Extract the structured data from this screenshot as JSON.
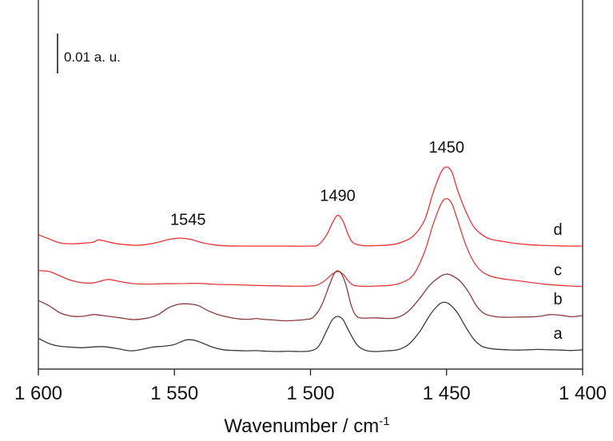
{
  "chart_data": {
    "type": "line",
    "xlabel": "Wavenumber / cm",
    "xlabel_superscript": "-1",
    "xlim": [
      1600,
      1400
    ],
    "x_reversed": true,
    "x_ticks": [
      1600,
      1550,
      1500,
      1450,
      1400
    ],
    "x_tick_labels": [
      "1 600",
      "1 550",
      "1 500",
      "1 450",
      "1 400"
    ],
    "y_visible": false,
    "grid": false,
    "scale_bar_label": "0.01 a. u.",
    "annotations": [
      {
        "text": "1545",
        "x": 1545
      },
      {
        "text": "1490",
        "x": 1490
      },
      {
        "text": "1450",
        "x": 1450
      }
    ],
    "colors": {
      "a": "#3a3a3a",
      "b": "#8a3b3b",
      "c": "#e03a3a",
      "d": "#f03030"
    },
    "series": [
      {
        "name": "d",
        "offset": 0.06,
        "points": [
          [
            1600,
            0.0065
          ],
          [
            1596,
            0.004
          ],
          [
            1592,
            0.0018
          ],
          [
            1588,
            0.0013
          ],
          [
            1584,
            0.0016
          ],
          [
            1580,
            0.0022
          ],
          [
            1578,
            0.0035
          ],
          [
            1576,
            0.003
          ],
          [
            1572,
            0.0016
          ],
          [
            1568,
            0.0008
          ],
          [
            1564,
            0.0004
          ],
          [
            1560,
            0.001
          ],
          [
            1556,
            0.0022
          ],
          [
            1552,
            0.0038
          ],
          [
            1548,
            0.0045
          ],
          [
            1544,
            0.0038
          ],
          [
            1540,
            0.002
          ],
          [
            1535,
            0.0006
          ],
          [
            1530,
            0.0001
          ],
          [
            1520,
            0.0
          ],
          [
            1510,
            0.0
          ],
          [
            1500,
            0.0
          ],
          [
            1497,
            0.0008
          ],
          [
            1494,
            0.0065
          ],
          [
            1492,
            0.013
          ],
          [
            1490,
            0.0175
          ],
          [
            1488,
            0.014
          ],
          [
            1486,
            0.006
          ],
          [
            1484,
            0.0015
          ],
          [
            1480,
            0.0002
          ],
          [
            1475,
            0.0003
          ],
          [
            1470,
            0.0008
          ],
          [
            1466,
            0.0025
          ],
          [
            1462,
            0.006
          ],
          [
            1458,
            0.015
          ],
          [
            1455,
            0.03
          ],
          [
            1452,
            0.042
          ],
          [
            1450,
            0.045
          ],
          [
            1448,
            0.042
          ],
          [
            1446,
            0.032
          ],
          [
            1443,
            0.02
          ],
          [
            1440,
            0.011
          ],
          [
            1437,
            0.0065
          ],
          [
            1434,
            0.004
          ],
          [
            1430,
            0.0028
          ],
          [
            1426,
            0.0018
          ],
          [
            1420,
            0.0008
          ],
          [
            1415,
            0.0004
          ],
          [
            1410,
            0.0002
          ],
          [
            1405,
            0.0
          ],
          [
            1400,
            0.0
          ]
        ]
      },
      {
        "name": "c",
        "offset": 0.037,
        "points": [
          [
            1600,
            0.009
          ],
          [
            1596,
            0.0085
          ],
          [
            1592,
            0.006
          ],
          [
            1588,
            0.0035
          ],
          [
            1584,
            0.0022
          ],
          [
            1580,
            0.002
          ],
          [
            1576,
            0.0035
          ],
          [
            1574,
            0.004
          ],
          [
            1570,
            0.0028
          ],
          [
            1566,
            0.0018
          ],
          [
            1562,
            0.0014
          ],
          [
            1558,
            0.0014
          ],
          [
            1554,
            0.0016
          ],
          [
            1550,
            0.0016
          ],
          [
            1546,
            0.0017
          ],
          [
            1542,
            0.0018
          ],
          [
            1538,
            0.0015
          ],
          [
            1534,
            0.0012
          ],
          [
            1528,
            0.001
          ],
          [
            1520,
            0.0006
          ],
          [
            1514,
            0.0004
          ],
          [
            1508,
            0.0002
          ],
          [
            1502,
            0.0002
          ],
          [
            1498,
            0.0006
          ],
          [
            1495,
            0.003
          ],
          [
            1492,
            0.007
          ],
          [
            1490,
            0.0085
          ],
          [
            1488,
            0.007
          ],
          [
            1486,
            0.003
          ],
          [
            1484,
            0.0006
          ],
          [
            1480,
            0.0001
          ],
          [
            1475,
            0.0003
          ],
          [
            1470,
            0.0008
          ],
          [
            1466,
            0.0025
          ],
          [
            1462,
            0.007
          ],
          [
            1458,
            0.02
          ],
          [
            1455,
            0.035
          ],
          [
            1452,
            0.047
          ],
          [
            1450,
            0.05
          ],
          [
            1448,
            0.047
          ],
          [
            1446,
            0.038
          ],
          [
            1443,
            0.024
          ],
          [
            1440,
            0.014
          ],
          [
            1437,
            0.0085
          ],
          [
            1434,
            0.006
          ],
          [
            1430,
            0.0045
          ],
          [
            1425,
            0.0035
          ],
          [
            1420,
            0.0025
          ],
          [
            1415,
            0.0015
          ],
          [
            1410,
            0.0008
          ],
          [
            1405,
            0.0003
          ],
          [
            1400,
            0.0
          ]
        ]
      },
      {
        "name": "b",
        "offset": 0.018,
        "points": [
          [
            1600,
            0.011
          ],
          [
            1596,
            0.008
          ],
          [
            1592,
            0.004
          ],
          [
            1588,
            0.0022
          ],
          [
            1584,
            0.002
          ],
          [
            1580,
            0.003
          ],
          [
            1578,
            0.0028
          ],
          [
            1575,
            0.0022
          ],
          [
            1570,
            0.0012
          ],
          [
            1565,
            0.0002
          ],
          [
            1560,
            0.001
          ],
          [
            1556,
            0.003
          ],
          [
            1552,
            0.007
          ],
          [
            1548,
            0.009
          ],
          [
            1544,
            0.009
          ],
          [
            1541,
            0.008
          ],
          [
            1538,
            0.0055
          ],
          [
            1534,
            0.003
          ],
          [
            1530,
            0.0015
          ],
          [
            1526,
            0.0005
          ],
          [
            1522,
            0.0004
          ],
          [
            1520,
            0.0008
          ],
          [
            1518,
            0.0004
          ],
          [
            1514,
            0.0
          ],
          [
            1510,
            -0.0005
          ],
          [
            1506,
            -0.0003
          ],
          [
            1502,
            0.0002
          ],
          [
            1499,
            0.0015
          ],
          [
            1496,
            0.008
          ],
          [
            1493,
            0.02
          ],
          [
            1491,
            0.027
          ],
          [
            1489,
            0.027
          ],
          [
            1487,
            0.02
          ],
          [
            1485,
            0.008
          ],
          [
            1483,
            0.002
          ],
          [
            1480,
            0.001
          ],
          [
            1476,
            0.0012
          ],
          [
            1472,
            0.0008
          ],
          [
            1468,
            0.0014
          ],
          [
            1464,
            0.005
          ],
          [
            1460,
            0.012
          ],
          [
            1456,
            0.02
          ],
          [
            1452,
            0.025
          ],
          [
            1450,
            0.026
          ],
          [
            1448,
            0.0252
          ],
          [
            1445,
            0.022
          ],
          [
            1442,
            0.016
          ],
          [
            1439,
            0.008
          ],
          [
            1436,
            0.0035
          ],
          [
            1432,
            0.0018
          ],
          [
            1428,
            0.0015
          ],
          [
            1424,
            0.0016
          ],
          [
            1420,
            0.0017
          ],
          [
            1416,
            0.002
          ],
          [
            1412,
            0.003
          ],
          [
            1408,
            0.0026
          ],
          [
            1404,
            0.0018
          ],
          [
            1400,
            0.0025
          ]
        ]
      },
      {
        "name": "a",
        "offset": 0.0,
        "points": [
          [
            1600,
            0.0075
          ],
          [
            1596,
            0.0045
          ],
          [
            1592,
            0.003
          ],
          [
            1588,
            0.0025
          ],
          [
            1584,
            0.0022
          ],
          [
            1580,
            0.0026
          ],
          [
            1577,
            0.0028
          ],
          [
            1574,
            0.0024
          ],
          [
            1570,
            0.0014
          ],
          [
            1566,
            0.0004
          ],
          [
            1562,
            0.0012
          ],
          [
            1558,
            0.0025
          ],
          [
            1554,
            0.003
          ],
          [
            1550,
            0.004
          ],
          [
            1546,
            0.0065
          ],
          [
            1543,
            0.0065
          ],
          [
            1540,
            0.005
          ],
          [
            1536,
            0.0025
          ],
          [
            1532,
            0.001
          ],
          [
            1528,
            0.0006
          ],
          [
            1524,
            0.0004
          ],
          [
            1520,
            0.0005
          ],
          [
            1516,
            0.0002
          ],
          [
            1512,
            0.0
          ],
          [
            1508,
            0.0002
          ],
          [
            1504,
            0.0
          ],
          [
            1500,
            0.0004
          ],
          [
            1497,
            0.003
          ],
          [
            1494,
            0.012
          ],
          [
            1492,
            0.018
          ],
          [
            1490,
            0.02
          ],
          [
            1488,
            0.018
          ],
          [
            1486,
            0.012
          ],
          [
            1483,
            0.004
          ],
          [
            1480,
            0.0008
          ],
          [
            1476,
            0.0
          ],
          [
            1472,
            0.0004
          ],
          [
            1468,
            0.001
          ],
          [
            1464,
            0.004
          ],
          [
            1460,
            0.011
          ],
          [
            1456,
            0.021
          ],
          [
            1453,
            0.0265
          ],
          [
            1451,
            0.028
          ],
          [
            1449,
            0.027
          ],
          [
            1446,
            0.022
          ],
          [
            1443,
            0.014
          ],
          [
            1440,
            0.007
          ],
          [
            1437,
            0.003
          ],
          [
            1433,
            0.0015
          ],
          [
            1428,
            0.001
          ],
          [
            1424,
            0.0008
          ],
          [
            1420,
            0.001
          ],
          [
            1416,
            0.0012
          ],
          [
            1412,
            0.001
          ],
          [
            1408,
            0.0008
          ],
          [
            1404,
            0.0006
          ],
          [
            1400,
            0.001
          ]
        ]
      }
    ]
  }
}
